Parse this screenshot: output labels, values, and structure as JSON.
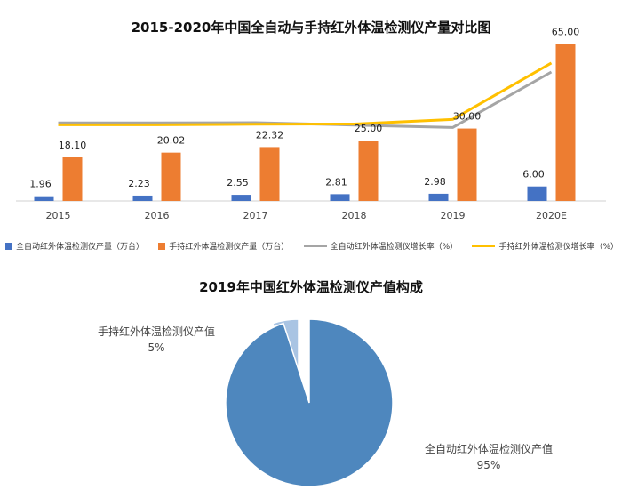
{
  "charts": {
    "top_title": "2015-2020年中国全自动与手持红外体温检测仪产量对比图",
    "pie_title": "2019年中国红外体温检测仪产值构成"
  },
  "chart_data": [
    {
      "type": "bar",
      "title": "2015-2020年中国全自动与手持红外体温检测仪产量对比图",
      "categories": [
        "2015",
        "2016",
        "2017",
        "2018",
        "2019",
        "2020E"
      ],
      "series": [
        {
          "name": "全自动红外体温检测仪产量（万台）",
          "kind": "bar",
          "color": "#4472C4",
          "values": [
            1.96,
            2.23,
            2.55,
            2.81,
            2.98,
            6.0
          ]
        },
        {
          "name": "手持红外体温检测仪产量（万台）",
          "kind": "bar",
          "color": "#ED7D31",
          "values": [
            18.1,
            20.02,
            22.32,
            25.0,
            30.0,
            65.0
          ]
        },
        {
          "name": "全自动红外体温检测仪增长率（%）",
          "kind": "line",
          "color": "#A5A5A5",
          "values": [
            null,
            13.8,
            14.3,
            10.2,
            6.0,
            101.3
          ]
        },
        {
          "name": "手持红外体温检测仪增长率（%）",
          "kind": "line",
          "color": "#FFC000",
          "values": [
            null,
            10.6,
            11.5,
            12.0,
            20.0,
            116.7
          ]
        }
      ],
      "data_labels": {
        "auto": [
          "1.96",
          "2.23",
          "2.55",
          "2.81",
          "2.98",
          "6.00"
        ],
        "handheld": [
          "18.10",
          "20.02",
          "22.32",
          "25.00",
          "30.00",
          "65.00"
        ]
      },
      "ylim": [
        0,
        70
      ],
      "y2lim": [
        -120,
        170
      ],
      "grid": false,
      "legend": "bottom"
    },
    {
      "type": "pie",
      "title": "2019年中国红外体温检测仪产值构成",
      "slices": [
        {
          "label": "全自动红外体温检测仪产值",
          "value": 95,
          "pct": "95%",
          "color": "#4E87BE"
        },
        {
          "label": "手持红外体温检测仪产值",
          "value": 5,
          "pct": "5%",
          "color": "#A9C4E3"
        }
      ]
    }
  ]
}
